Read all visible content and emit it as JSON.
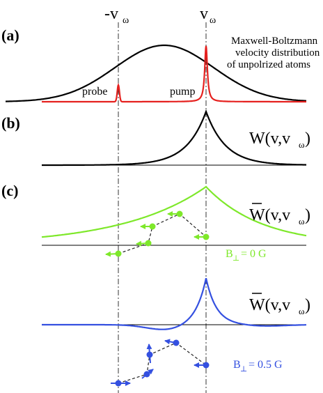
{
  "labels": {
    "neg_v": "-v",
    "pos_v": "v",
    "omega": "ω",
    "panel_a": "(a)",
    "panel_b": "(b)",
    "panel_c": "(c)",
    "mb_line1": "Maxwell-Boltzmann",
    "mb_line2": "velocity distribution",
    "mb_line3": "of unpolrized atoms",
    "probe": "probe",
    "pump": "pump",
    "w_func": "W(v,v",
    "w_close": ")",
    "wbar_func": "W(v,v",
    "b0_prefix": "B",
    "b0_sub": "⊥",
    "b0_value": " = 0 G",
    "b05_prefix": "B",
    "b05_sub": "⊥",
    "b05_value": " = 0.5 G"
  },
  "colors": {
    "black": "#000000",
    "red": "#e5201e",
    "green": "#7ee82a",
    "blue": "#3450e0",
    "axis_gray": "#333333"
  }
}
